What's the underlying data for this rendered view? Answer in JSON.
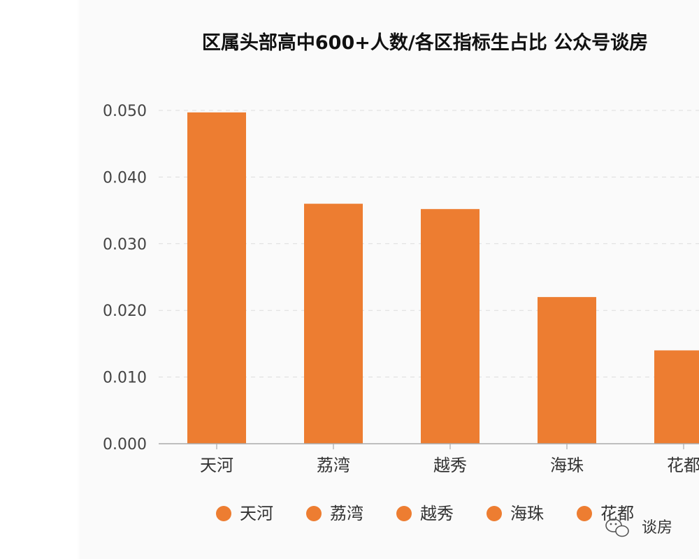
{
  "chart_data": {
    "type": "bar",
    "title": "区属头部高中600+人数/各区指标生占比 公众号谈房",
    "xlabel": "",
    "ylabel": "",
    "categories": [
      "天河",
      "荔湾",
      "越秀",
      "海珠",
      "花都"
    ],
    "values": [
      0.0497,
      0.036,
      0.0352,
      0.022,
      0.014
    ],
    "ylim": [
      0,
      0.05
    ],
    "yticks": [
      "0.000",
      "0.010",
      "0.020",
      "0.030",
      "0.040",
      "0.050"
    ],
    "grid": true,
    "legend": [
      "天河",
      "荔湾",
      "越秀",
      "海珠",
      "花都"
    ],
    "legend_position": "bottom",
    "bar_color": "#ED7D31"
  },
  "watermark": {
    "icon": "wechat-icon",
    "text": "谈房"
  }
}
